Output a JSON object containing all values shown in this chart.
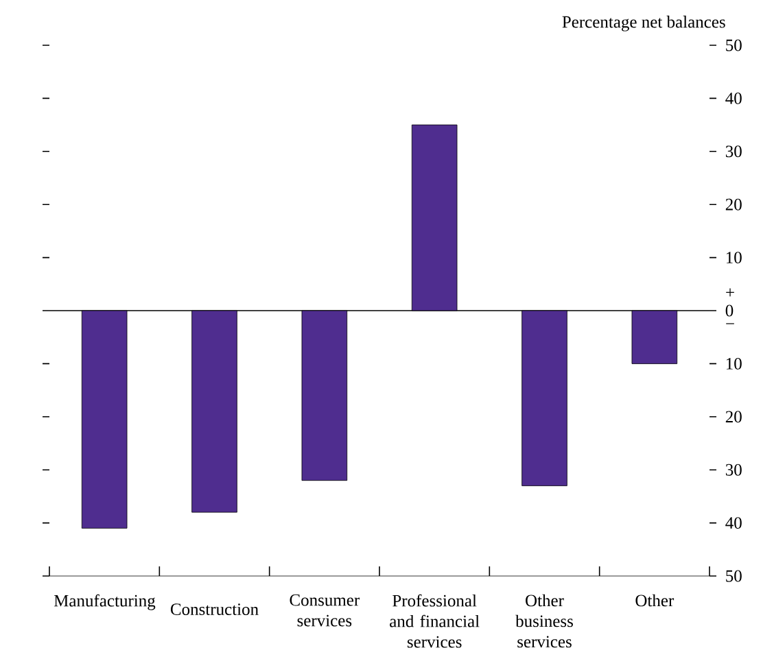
{
  "chart_data": {
    "type": "bar",
    "ylabel": "Percentage net balances",
    "categories": [
      "Manufacturing",
      "Construction",
      "Consumer services",
      "Professional and financial services",
      "Other business services",
      "Other"
    ],
    "values": [
      -41,
      -38,
      -32,
      35,
      -33,
      -10
    ],
    "color": "#4f2d8f",
    "ylim": [
      -50,
      50
    ],
    "yticks": [
      {
        "value": -50,
        "label": "50"
      },
      {
        "value": -40,
        "label": "40"
      },
      {
        "value": -30,
        "label": "30"
      },
      {
        "value": -20,
        "label": "20"
      },
      {
        "value": -10,
        "label": "10"
      },
      0,
      10,
      20,
      30,
      40,
      50
    ],
    "ref_lines": [
      {
        "axis": "y",
        "value": 0
      }
    ],
    "annotations": [
      "+",
      "−"
    ]
  }
}
